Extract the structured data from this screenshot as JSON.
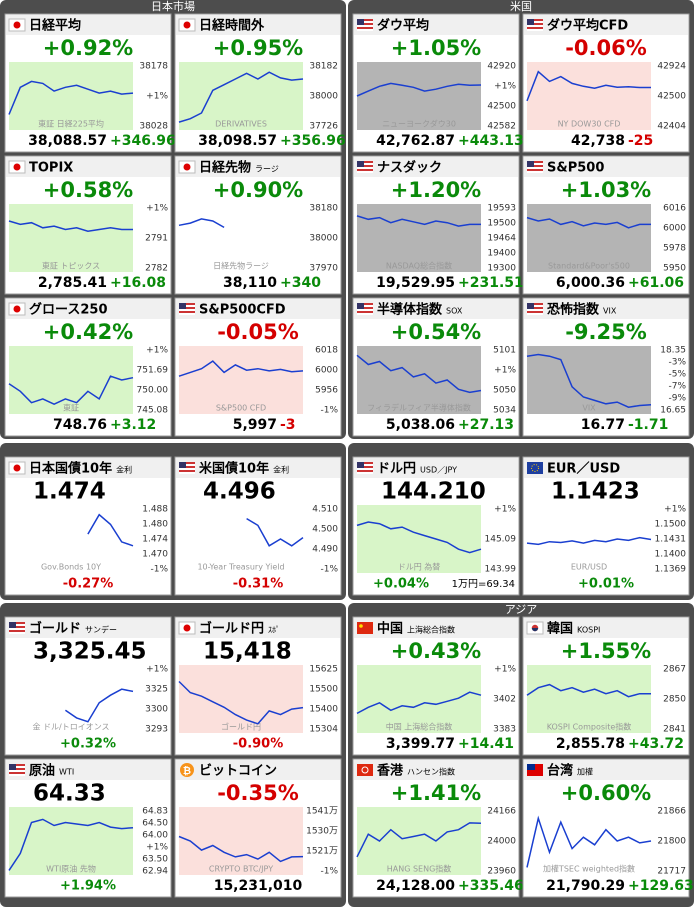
{
  "sections": [
    {
      "title": "日本市場",
      "tiles": [
        {
          "flag": "jp",
          "name": "日経平均",
          "change": "+0.92%",
          "color": "#0a8a0a",
          "price": "38,088.57",
          "price_change": "+346.96",
          "axis_labels": [
            "38178",
            "+1%",
            "38028"
          ],
          "watermark": "東証 日経225平均",
          "chart_bg": "#d8f5c8",
          "ylim": [
            37900,
            38250
          ],
          "line": [
            37980,
            38120,
            38150,
            38140,
            38100,
            38120,
            38130,
            38110,
            38090,
            38100,
            38085,
            38090
          ]
        },
        {
          "flag": "jp",
          "name": "日経時間外",
          "change": "+0.95%",
          "color": "#0a8a0a",
          "price": "38,098.57",
          "price_change": "+356.96",
          "axis_labels": [
            "38182",
            "38000",
            "37726"
          ],
          "watermark": "DERIVATIVES",
          "chart_bg": "#d8f5c8",
          "ylim": [
            37650,
            38250
          ],
          "line": [
            37720,
            37750,
            37800,
            38000,
            38050,
            38100,
            38150,
            38100,
            38160,
            38110,
            38090,
            38100
          ]
        },
        {
          "flag": "jp",
          "name": "TOPIX",
          "change": "+0.58%",
          "color": "#0a8a0a",
          "price": "2,785.41",
          "price_change": "+16.08",
          "axis_labels": [
            "+1%",
            "2791",
            "2782"
          ],
          "watermark": "東証 トピックス",
          "chart_bg": "#d8f5c8",
          "ylim": [
            2760,
            2800
          ],
          "line": [
            2790,
            2788,
            2789,
            2786,
            2787,
            2785,
            2786,
            2784,
            2785,
            2786,
            2785,
            2785
          ]
        },
        {
          "flag": "jp",
          "name": "日経先物",
          "sub": "ラージ",
          "change": "+0.90%",
          "color": "#0a8a0a",
          "price": "38,110",
          "price_change": "+340",
          "axis_labels": [
            "38180",
            "38000",
            "37970"
          ],
          "watermark": "日経先物ラージ",
          "chart_bg": "#ffffff",
          "ylim": [
            37900,
            38220
          ],
          "line": [
            38120,
            38130,
            38150,
            38140,
            38110,
            null,
            null,
            null,
            null,
            null,
            null,
            null
          ]
        },
        {
          "flag": "jp",
          "name": "グロース250",
          "change": "+0.42%",
          "color": "#0a8a0a",
          "price": "748.76",
          "price_change": "+3.12",
          "axis_labels": [
            "+1%",
            "751.69",
            "750.00",
            "745.08"
          ],
          "watermark": "東証",
          "chart_bg": "#d8f5c8",
          "ylim": [
            744,
            753
          ],
          "line": [
            748,
            747,
            745.5,
            746,
            745.3,
            746,
            745.5,
            747,
            746,
            749,
            748.5,
            748.8
          ]
        },
        {
          "flag": "us",
          "name": "S&P500CFD",
          "change": "-0.05%",
          "color": "#d40000",
          "price": "5,997",
          "price_change": "-3",
          "axis_labels": [
            "6018",
            "6000",
            "5956",
            "-1%"
          ],
          "watermark": "S&P500 CFD",
          "chart_bg": "#fbe0dc",
          "ylim": [
            5940,
            6030
          ],
          "line": [
            5990,
            5995,
            6000,
            6010,
            5995,
            6005,
            5998,
            6000,
            5997,
            5999,
            5996,
            5997
          ]
        }
      ]
    },
    {
      "title": "米国",
      "tiles": [
        {
          "flag": "us",
          "name": "ダウ平均",
          "change": "+1.05%",
          "color": "#0a8a0a",
          "price": "42,762.87",
          "price_change": "+443.13",
          "axis_labels": [
            "42920",
            "+1%",
            "42500",
            "42582"
          ],
          "watermark": "ニューヨークダウ30",
          "chart_bg": "#b4b4b4",
          "ylim": [
            42300,
            43000
          ],
          "line": [
            42650,
            42700,
            42750,
            42780,
            42760,
            42740,
            42700,
            42720,
            42750,
            42770,
            42760,
            42763
          ]
        },
        {
          "flag": "us",
          "name": "ダウ平均CFD",
          "change": "-0.06%",
          "color": "#d40000",
          "price": "42,738",
          "price_change": "-25",
          "axis_labels": [
            "42924",
            "42500",
            "42404"
          ],
          "watermark": "NY DOW30 CFD",
          "chart_bg": "#fbe0dc",
          "ylim": [
            42300,
            43000
          ],
          "line": [
            42600,
            42900,
            42800,
            42850,
            42780,
            42750,
            42730,
            42760,
            42740,
            42745,
            42738,
            42738
          ]
        },
        {
          "flag": "us",
          "name": "ナスダック",
          "change": "+1.20%",
          "color": "#0a8a0a",
          "price": "19,529.95",
          "price_change": "+231.51",
          "axis_labels": [
            "19593",
            "19500",
            "19464",
            "19400",
            "19300"
          ],
          "watermark": "NASDAQ総合指数",
          "chart_bg": "#b4b4b4",
          "ylim": [
            19250,
            19650
          ],
          "line": [
            19580,
            19560,
            19570,
            19540,
            19560,
            19545,
            19530,
            19550,
            19540,
            19520,
            19530,
            19530
          ]
        },
        {
          "flag": "us",
          "name": "S&P500",
          "change": "+1.03%",
          "color": "#0a8a0a",
          "price": "6,000.36",
          "price_change": "+61.06",
          "axis_labels": [
            "6016",
            "6000",
            "5978",
            "5950"
          ],
          "watermark": "Standard&Poor's500",
          "chart_bg": "#b4b4b4",
          "ylim": [
            5930,
            6030
          ],
          "line": [
            6010,
            6005,
            6008,
            6000,
            6004,
            5998,
            6002,
            6000,
            6003,
            5995,
            6000,
            6000
          ]
        },
        {
          "flag": "us",
          "name": "半導体指数",
          "sub": "SOX",
          "change": "+0.54%",
          "color": "#0a8a0a",
          "price": "5,038.06",
          "price_change": "+27.13",
          "axis_labels": [
            "5101",
            "+1%",
            "5050",
            "5034"
          ],
          "watermark": "フィラデルフィア半導体指数",
          "chart_bg": "#b4b4b4",
          "ylim": [
            5000,
            5110
          ],
          "line": [
            5095,
            5080,
            5085,
            5070,
            5075,
            5060,
            5065,
            5050,
            5055,
            5040,
            5035,
            5038
          ]
        },
        {
          "flag": "us",
          "name": "恐怖指数",
          "sub": "VIX",
          "change": "-9.25%",
          "color": "#0a8a0a",
          "price": "16.77",
          "price_change": "-1.71",
          "axis_labels": [
            "18.35",
            "-3%",
            "-5%",
            "-7%",
            "-9%",
            "16.65"
          ],
          "watermark": "VIX",
          "chart_bg": "#b4b4b4",
          "ylim": [
            16.5,
            18.5
          ],
          "line": [
            18.2,
            18.25,
            18.2,
            18.1,
            17.3,
            17.0,
            16.9,
            16.8,
            16.85,
            16.7,
            16.75,
            16.77
          ]
        }
      ]
    },
    {
      "tiles": [
        {
          "flag": "jp",
          "name": "日本国債10年",
          "sub": "金利",
          "value": "1.474",
          "change": "-0.27%",
          "color": "#d40000",
          "axis_labels": [
            "1.488",
            "1.480",
            "1.474",
            "1.470",
            "-1%"
          ],
          "watermark": "Gov.Bonds 10Y",
          "chart_bg": "#ffffff",
          "ylim": [
            1.46,
            1.495
          ],
          "line": [
            null,
            null,
            null,
            null,
            null,
            null,
            null,
            1.48,
            1.49,
            1.485,
            1.476,
            1.474
          ]
        },
        {
          "flag": "us",
          "name": "米国債10年",
          "sub": "金利",
          "value": "4.496",
          "change": "-0.31%",
          "color": "#d40000",
          "axis_labels": [
            "4.510",
            "4.500",
            "4.490",
            "-1%"
          ],
          "watermark": "10-Year Treasury Yield",
          "chart_bg": "#ffffff",
          "ylim": [
            4.47,
            4.52
          ],
          "line": [
            null,
            null,
            null,
            null,
            null,
            null,
            4.51,
            4.505,
            4.49,
            4.495,
            4.49,
            4.496
          ]
        }
      ]
    },
    {
      "tiles": [
        {
          "flag": "us",
          "name": "ドル円",
          "sub": "USD／JPY",
          "value": "144.210",
          "change": "+0.04%",
          "note": "1万円=69.34",
          "color": "#0a8a0a",
          "axis_labels": [
            "+1%",
            "145.09",
            "143.99"
          ],
          "watermark": "ドル円 為替",
          "chart_bg": "#d8f5c8",
          "ylim": [
            143.5,
            145.5
          ],
          "line": [
            144.9,
            145.0,
            144.95,
            144.8,
            144.85,
            144.7,
            144.6,
            144.5,
            144.4,
            144.2,
            144.1,
            144.2
          ]
        },
        {
          "flag": "eu",
          "name": "EUR／USD",
          "value": "1.1423",
          "change": "+0.01%",
          "color": "#0a8a0a",
          "axis_labels": [
            "+1%",
            "1.1500",
            "1.1431",
            "1.1400",
            "1.1369"
          ],
          "watermark": "EUR/USD",
          "chart_bg": "#ffffff",
          "ylim": [
            1.13,
            1.155
          ],
          "line": [
            1.141,
            1.1405,
            1.1415,
            1.1412,
            1.1418,
            1.141,
            1.142,
            1.1415,
            1.1425,
            1.142,
            1.143,
            1.1423
          ]
        }
      ]
    },
    {
      "tiles": [
        {
          "flag": "us",
          "name": "ゴールド",
          "sub": "サンデー",
          "value": "3,325.45",
          "change": "+0.32%",
          "color": "#0a8a0a",
          "axis_labels": [
            "+1%",
            "3325",
            "3300",
            "3293"
          ],
          "watermark": "金 ドル/トロイオンス",
          "chart_bg": "#ffffff",
          "ylim": [
            3270,
            3360
          ],
          "line": [
            null,
            null,
            null,
            null,
            null,
            3300,
            3290,
            3285,
            3310,
            3320,
            3328,
            3325
          ]
        },
        {
          "flag": "jp",
          "name": "ゴールド円",
          "sub": "ｽﾎﾟ",
          "value": "15,418",
          "change": "-0.90%",
          "color": "#d40000",
          "axis_labels": [
            "15625",
            "15500",
            "15400",
            "15304"
          ],
          "watermark": "ゴールド円",
          "chart_bg": "#fbe0dc",
          "ylim": [
            15280,
            15650
          ],
          "line": [
            15560,
            15500,
            15480,
            15450,
            15420,
            15380,
            15350,
            15330,
            15400,
            15380,
            15410,
            15418
          ]
        },
        {
          "flag": "us",
          "name": "原油",
          "sub": "WTI",
          "value": "64.33",
          "change": "+1.94%",
          "color": "#0a8a0a",
          "axis_labels": [
            "64.83",
            "64.50",
            "64.00",
            "+1%",
            "63.50",
            "62.94"
          ],
          "watermark": "WTI原油 先物",
          "chart_bg": "#d8f5c8",
          "ylim": [
            62.8,
            65
          ],
          "line": [
            62.95,
            63.5,
            64.5,
            64.6,
            64.4,
            64.5,
            64.45,
            64.4,
            64.5,
            64.35,
            64.3,
            64.33
          ]
        },
        {
          "flag": "btc",
          "name": "ビットコイン",
          "change": "-0.35%",
          "color": "#d40000",
          "price": "15,231,010",
          "axis_labels": [
            "1541万",
            "1530万",
            "1521万",
            "-1%"
          ],
          "watermark": "CRYPTO BTC/JPY",
          "chart_bg": "#fbe0dc",
          "ylim": [
            15150000,
            15450000
          ],
          "line": [
            15320000,
            15300000,
            15260000,
            15280000,
            15250000,
            15230000,
            15240000,
            15220000,
            15250000,
            15210000,
            15230000,
            15231010
          ]
        }
      ]
    },
    {
      "title": "アジア",
      "tiles": [
        {
          "flag": "cn",
          "name": "中国",
          "sub": "上海総合指数",
          "change": "+0.43%",
          "color": "#0a8a0a",
          "price": "3,399.77",
          "price_change": "+14.41",
          "axis_labels": [
            "+1%",
            "3402",
            "3383"
          ],
          "watermark": "中国 上海総合指数",
          "chart_bg": "#d8f5c8",
          "ylim": [
            3375,
            3420
          ],
          "line": [
            3388,
            3392,
            3395,
            3390,
            3393,
            3392,
            3395,
            3394,
            3396,
            3398,
            3402,
            3400
          ]
        },
        {
          "flag": "kr",
          "name": "韓国",
          "sub": "KOSPI",
          "change": "+1.55%",
          "color": "#0a8a0a",
          "price": "2,855.78",
          "price_change": "+43.72",
          "axis_labels": [
            "2867",
            "2850",
            "2841"
          ],
          "watermark": "KOSPI Composite指数",
          "chart_bg": "#d8f5c8",
          "ylim": [
            2830,
            2875
          ],
          "line": [
            2855,
            2860,
            2862,
            2858,
            2860,
            2857,
            2859,
            2856,
            2858,
            2854,
            2856,
            2856
          ]
        },
        {
          "flag": "hk",
          "name": "香港",
          "sub": "ハンセン指数",
          "change": "+1.41%",
          "color": "#0a8a0a",
          "price": "24,128.00",
          "price_change": "+335.46",
          "axis_labels": [
            "24166",
            "24000",
            "23960"
          ],
          "watermark": "HANG SENG指数",
          "chart_bg": "#d8f5c8",
          "ylim": [
            23900,
            24200
          ],
          "line": [
            23980,
            24080,
            24050,
            24100,
            24060,
            24070,
            24080,
            24050,
            24090,
            24100,
            24130,
            24128
          ]
        },
        {
          "flag": "tw",
          "name": "台湾",
          "sub": "加權",
          "change": "+0.60%",
          "color": "#0a8a0a",
          "price": "21,790.29",
          "price_change": "+129.63",
          "axis_labels": [
            "21866",
            "21800",
            "21717"
          ],
          "watermark": "加權TSEC weighted指數",
          "chart_bg": "#ffffff",
          "ylim": [
            21700,
            21880
          ],
          "line": [
            21720,
            21850,
            21760,
            21840,
            21770,
            21800,
            21780,
            21820,
            21790,
            21800,
            21785,
            21790
          ]
        }
      ]
    }
  ]
}
